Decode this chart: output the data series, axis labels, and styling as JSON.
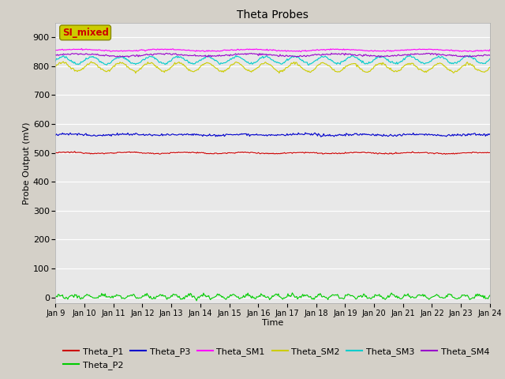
{
  "title": "Theta Probes",
  "xlabel": "Time",
  "ylabel": "Probe Output (mV)",
  "ylim": [
    -20,
    950
  ],
  "yticks": [
    0,
    100,
    200,
    300,
    400,
    500,
    600,
    700,
    800,
    900
  ],
  "x_labels": [
    "Jan 9",
    "Jan 10",
    "Jan 11",
    "Jan 12",
    "Jan 13",
    "Jan 14",
    "Jan 15",
    "Jan 16",
    "Jan 17",
    "Jan 18",
    "Jan 19",
    "Jan 20",
    "Jan 21",
    "Jan 22",
    "Jan 23",
    "Jan 24"
  ],
  "annotation_text": "SI_mixed",
  "annotation_color": "#cc0000",
  "annotation_bg": "#cccc00",
  "annotation_edge": "#888800",
  "series": [
    {
      "name": "Theta_P1",
      "color": "#cc0000",
      "base": 500,
      "amplitude": 2,
      "noise": 1.0,
      "period": 2.0,
      "trend": -0.002
    },
    {
      "name": "Theta_P2",
      "color": "#00cc00",
      "base": 3,
      "amplitude": 6,
      "noise": 3.0,
      "period": 0.5,
      "trend": 0.0
    },
    {
      "name": "Theta_P3",
      "color": "#0000cc",
      "base": 563,
      "amplitude": 2,
      "noise": 2.0,
      "period": 2.0,
      "trend": -0.002
    },
    {
      "name": "Theta_SM1",
      "color": "#ff00ff",
      "base": 855,
      "amplitude": 3,
      "noise": 1.0,
      "period": 3.0,
      "trend": 0.0
    },
    {
      "name": "Theta_SM2",
      "color": "#cccc00",
      "base": 798,
      "amplitude": 15,
      "noise": 2.0,
      "period": 1.0,
      "trend": -0.008
    },
    {
      "name": "Theta_SM3",
      "color": "#00cccc",
      "base": 820,
      "amplitude": 12,
      "noise": 2.0,
      "period": 1.0,
      "trend": 0.003
    },
    {
      "name": "Theta_SM4",
      "color": "#9900cc",
      "base": 838,
      "amplitude": 4,
      "noise": 1.5,
      "period": 3.0,
      "trend": 0.001
    }
  ],
  "n_points": 500,
  "background_color": "#d4d0c8",
  "plot_bg": "#e8e8e8",
  "title_fontsize": 10,
  "axis_fontsize": 8,
  "tick_fontsize": 7,
  "legend_fontsize": 8
}
